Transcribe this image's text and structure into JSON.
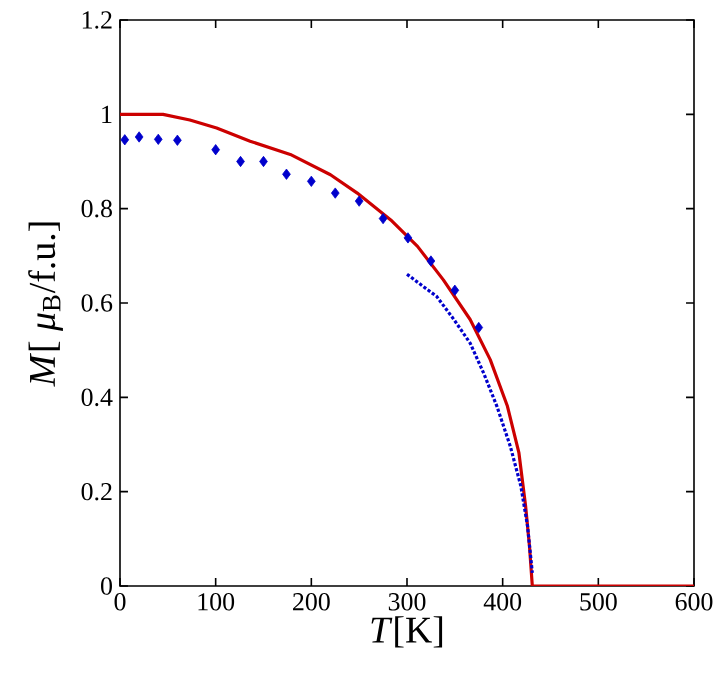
{
  "chart_data": {
    "type": "line",
    "xlabel": "*T*[K]",
    "ylabel": "*M*[ *μ*$_{B}$/f.u.]",
    "xlim": [
      0,
      600
    ],
    "ylim": [
      0,
      1.2
    ],
    "xticks": [
      0,
      100,
      200,
      300,
      400,
      500,
      600
    ],
    "yticks": [
      0,
      0.2,
      0.4,
      0.6,
      0.8,
      1,
      1.2
    ],
    "grid": false,
    "series": [
      {
        "color": "#cc0000",
        "line_style": "solid",
        "x": [
          0,
          45,
          73,
          101,
          136,
          178,
          220,
          248,
          283,
          311,
          338,
          366,
          387,
          405,
          417,
          424,
          428,
          431,
          600
        ],
        "values": [
          1.0,
          1.0,
          0.988,
          0.971,
          0.943,
          0.915,
          0.872,
          0.833,
          0.776,
          0.72,
          0.649,
          0.565,
          0.48,
          0.381,
          0.282,
          0.169,
          0.085,
          0,
          0
        ]
      },
      {
        "type": "scatter",
        "color": "#0000cc",
        "marker": "diamond",
        "x": [
          5,
          20,
          40,
          60,
          100,
          126,
          150,
          174,
          200,
          225,
          250,
          275,
          301,
          325,
          350,
          375
        ],
        "values": [
          0.946,
          0.952,
          0.947,
          0.945,
          0.925,
          0.9,
          0.9,
          0.873,
          0.858,
          0.833,
          0.816,
          0.779,
          0.738,
          0.689,
          0.627,
          0.548
        ]
      },
      {
        "color": "#0000cc",
        "line_style": "dotted",
        "x": [
          300,
          317,
          331,
          349,
          366,
          380,
          394,
          408,
          419,
          426,
          431
        ],
        "values": [
          0.661,
          0.635,
          0.614,
          0.565,
          0.515,
          0.452,
          0.381,
          0.296,
          0.212,
          0.127,
          0.028
        ]
      }
    ]
  }
}
